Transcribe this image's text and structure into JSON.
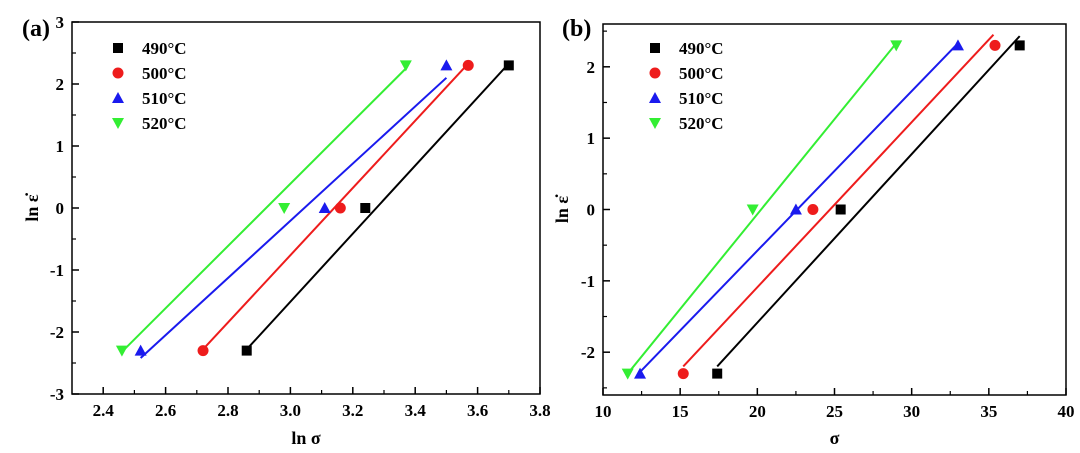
{
  "chart_data": [
    {
      "type": "scatter",
      "panel_label": "(a)",
      "xlabel": "ln σ",
      "ylabel": "ln ε̇",
      "xlim": [
        2.3,
        3.8
      ],
      "ylim": [
        -3,
        3
      ],
      "xticks": [
        "2.4",
        "2.6",
        "2.8",
        "3.0",
        "3.2",
        "3.4",
        "3.6",
        "3.8"
      ],
      "yticks": [
        "-3",
        "-2",
        "-1",
        "0",
        "1",
        "2",
        "3"
      ],
      "legend_position": "top-left",
      "series": [
        {
          "name": "490°C",
          "color": "#000000",
          "marker": "square",
          "x": [
            2.86,
            3.24,
            3.7
          ],
          "y": [
            -2.3,
            0.0,
            2.3
          ],
          "fit": [
            [
              2.86,
              -2.28
            ],
            [
              3.7,
              2.33
            ]
          ]
        },
        {
          "name": "500°C",
          "color": "#ee1c1c",
          "marker": "circle",
          "x": [
            2.72,
            3.16,
            3.57
          ],
          "y": [
            -2.3,
            0.0,
            2.3
          ],
          "fit": [
            [
              2.72,
              -2.28
            ],
            [
              3.57,
              2.33
            ]
          ]
        },
        {
          "name": "510°C",
          "color": "#1a1aee",
          "marker": "triangle-up",
          "x": [
            2.52,
            3.11,
            3.5
          ],
          "y": [
            -2.3,
            0.0,
            2.3
          ],
          "fit": [
            [
              2.52,
              -2.42
            ],
            [
              3.5,
              2.1
            ]
          ]
        },
        {
          "name": "520°C",
          "color": "#33ee33",
          "marker": "triangle-down",
          "x": [
            2.46,
            2.98,
            3.37
          ],
          "y": [
            -2.3,
            0.0,
            2.3
          ],
          "fit": [
            [
              2.46,
              -2.32
            ],
            [
              3.37,
              2.25
            ]
          ]
        }
      ]
    },
    {
      "type": "scatter",
      "panel_label": "(b)",
      "xlabel": "σ",
      "ylabel": "ln ε̇",
      "xlim": [
        10,
        40
      ],
      "ylim": [
        -2.6,
        2.6
      ],
      "xticks": [
        "10",
        "15",
        "20",
        "25",
        "30",
        "35",
        "40"
      ],
      "yticks": [
        "-2",
        "-1",
        "0",
        "1",
        "2"
      ],
      "legend_position": "top-left",
      "series": [
        {
          "name": "490°C",
          "color": "#000000",
          "marker": "square",
          "x": [
            17.4,
            25.4,
            37.0
          ],
          "y": [
            -2.3,
            0.0,
            2.3
          ],
          "fit": [
            [
              17.4,
              -2.2
            ],
            [
              37.0,
              2.43
            ]
          ]
        },
        {
          "name": "500°C",
          "color": "#ee1c1c",
          "marker": "circle",
          "x": [
            15.2,
            23.6,
            35.4
          ],
          "y": [
            -2.3,
            0.0,
            2.3
          ],
          "fit": [
            [
              15.2,
              -2.2
            ],
            [
              35.3,
              2.45
            ]
          ]
        },
        {
          "name": "510°C",
          "color": "#1a1aee",
          "marker": "triangle-up",
          "x": [
            12.4,
            22.5,
            33.0
          ],
          "y": [
            -2.3,
            0.0,
            2.3
          ],
          "fit": [
            [
              12.3,
              -2.3
            ],
            [
              33.0,
              2.33
            ]
          ]
        },
        {
          "name": "520°C",
          "color": "#33ee33",
          "marker": "triangle-down",
          "x": [
            11.6,
            19.7,
            29.0
          ],
          "y": [
            -2.3,
            0.0,
            2.3
          ],
          "fit": [
            [
              11.6,
              -2.3
            ],
            [
              29.0,
              2.33
            ]
          ]
        }
      ]
    }
  ]
}
